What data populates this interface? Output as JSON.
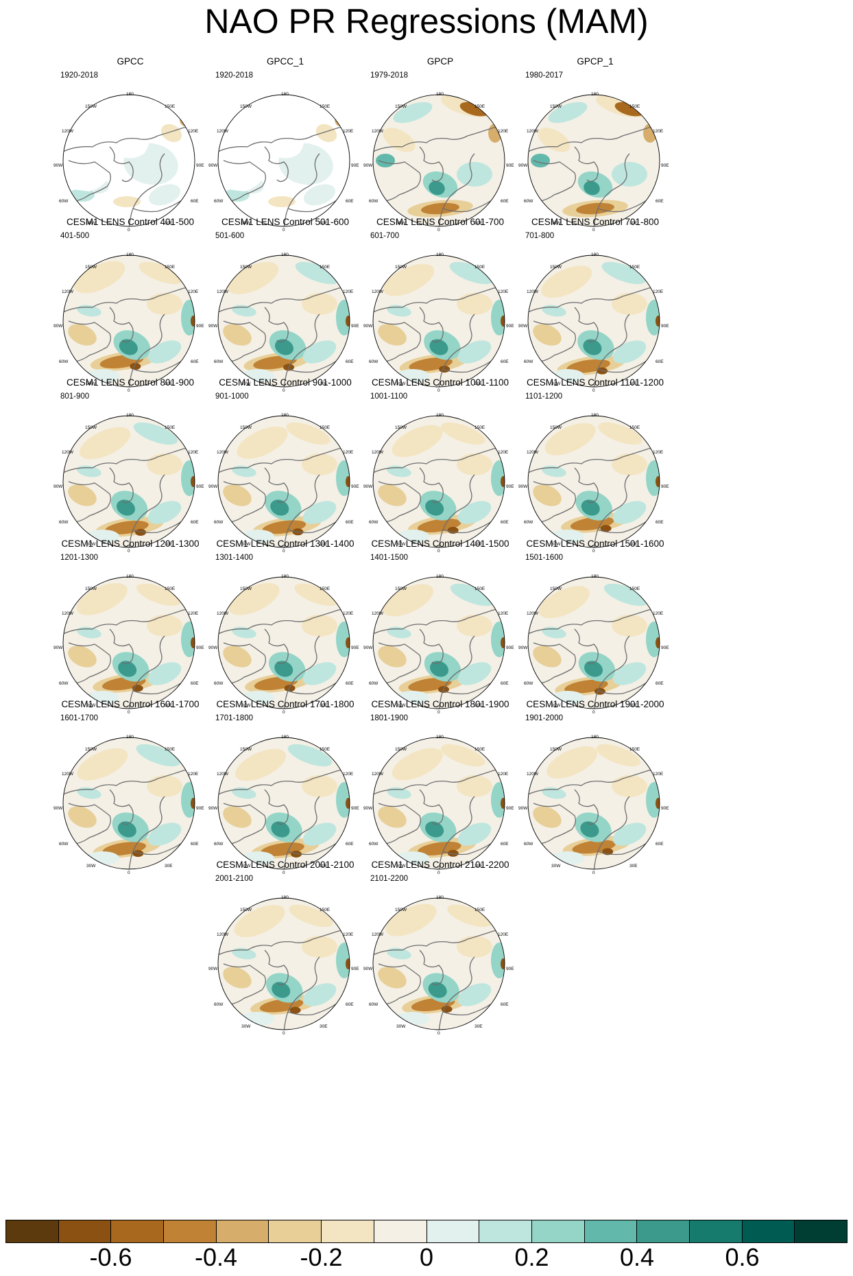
{
  "title": "NAO PR Regressions (MAM)",
  "map_labels": {
    "top": "180",
    "bottom": "0",
    "l1": "150W",
    "l2": "120W",
    "l3": "90W",
    "l4": "60W",
    "l5": "30W",
    "r1": "150E",
    "r2": "120E",
    "r3": "90E",
    "r4": "60E",
    "r5": "30E"
  },
  "panels": [
    {
      "title": "GPCC",
      "years": "1920-2018",
      "kind": "gpcc"
    },
    {
      "title": "GPCC_1",
      "years": "1920-2018",
      "kind": "gpcc"
    },
    {
      "title": "GPCP",
      "years": "1979-2018",
      "kind": "gpcp"
    },
    {
      "title": "GPCP_1",
      "years": "1980-2017",
      "kind": "gpcp"
    },
    {
      "title": "CESM1 LENS Control 401-500",
      "years": "401-500",
      "kind": "model"
    },
    {
      "title": "CESM1 LENS Control 501-600",
      "years": "501-600",
      "kind": "model"
    },
    {
      "title": "CESM1 LENS Control 601-700",
      "years": "601-700",
      "kind": "model"
    },
    {
      "title": "CESM1 LENS Control 701-800",
      "years": "701-800",
      "kind": "model"
    },
    {
      "title": "CESM1 LENS Control 801-900",
      "years": "801-900",
      "kind": "model"
    },
    {
      "title": "CESM1 LENS Control 901-1000",
      "years": "901-1000",
      "kind": "model"
    },
    {
      "title": "CESM1 LENS Control 1001-1100",
      "years": "1001-1100",
      "kind": "model"
    },
    {
      "title": "CESM1 LENS Control 1101-1200",
      "years": "1101-1200",
      "kind": "model"
    },
    {
      "title": "CESM1 LENS Control 1201-1300",
      "years": "1201-1300",
      "kind": "model"
    },
    {
      "title": "CESM1 LENS Control 1301-1400",
      "years": "1301-1400",
      "kind": "model"
    },
    {
      "title": "CESM1 LENS Control 1401-1500",
      "years": "1401-1500",
      "kind": "model"
    },
    {
      "title": "CESM1 LENS Control 1501-1600",
      "years": "1501-1600",
      "kind": "model"
    },
    {
      "title": "CESM1 LENS Control 1601-1700",
      "years": "1601-1700",
      "kind": "model"
    },
    {
      "title": "CESM1 LENS Control 1701-1800",
      "years": "1701-1800",
      "kind": "model"
    },
    {
      "title": "CESM1 LENS Control 1801-1900",
      "years": "1801-1900",
      "kind": "model"
    },
    {
      "title": "CESM1 LENS Control 1901-2000",
      "years": "1901-2000",
      "kind": "model"
    },
    {
      "title": "CESM1 LENS Control 2001-2100",
      "years": "2001-2100",
      "kind": "model"
    },
    {
      "title": "CESM1 LENS Control 2101-2200",
      "years": "2101-2200",
      "kind": "model"
    }
  ],
  "colorbar": {
    "colors": [
      "#5c3a0e",
      "#8a5113",
      "#a8691f",
      "#c08234",
      "#d6ad6a",
      "#e8cf98",
      "#f4e5c2",
      "#f4f0e6",
      "#e2f1ee",
      "#bfe6de",
      "#94d5c8",
      "#62b8aa",
      "#3b9a8c",
      "#167a6d",
      "#005c52",
      "#003d33"
    ],
    "ticks": [
      {
        "label": "-0.6",
        "index": 2
      },
      {
        "label": "-0.4",
        "index": 4
      },
      {
        "label": "-0.2",
        "index": 6
      },
      {
        "label": "0",
        "index": 8
      },
      {
        "label": "0.2",
        "index": 10
      },
      {
        "label": "0.4",
        "index": 12
      },
      {
        "label": "0.6",
        "index": 14
      }
    ]
  }
}
